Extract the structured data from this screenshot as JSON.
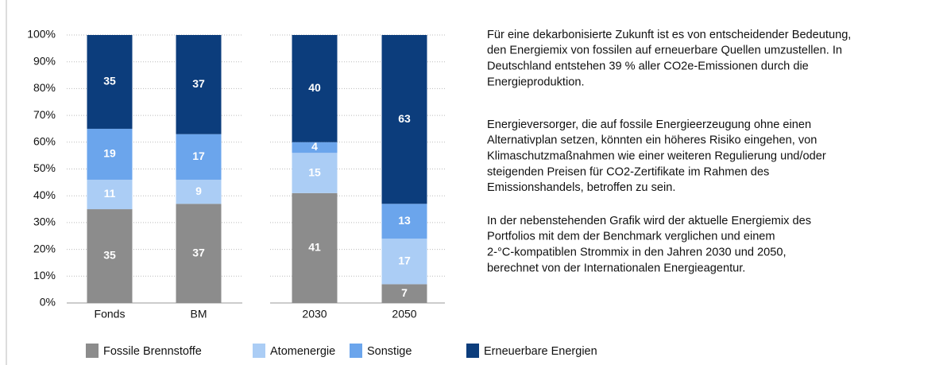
{
  "chart_data": {
    "type": "bar",
    "stacked": true,
    "categories": [
      "Fonds",
      "BM",
      "2030",
      "2050"
    ],
    "series": [
      {
        "name": "Fossile Brennstoffe",
        "color": "#8c8c8c",
        "values": [
          35,
          37,
          41,
          7
        ]
      },
      {
        "name": "Atomenergie",
        "color": "#abcdf5",
        "values": [
          11,
          9,
          15,
          17
        ]
      },
      {
        "name": "Sonstige",
        "color": "#6ba5ec",
        "values": [
          19,
          17,
          4,
          13
        ]
      },
      {
        "name": "Erneuerbare Energien",
        "color": "#0c3d7c",
        "values": [
          35,
          37,
          40,
          63
        ]
      }
    ],
    "ylim": [
      0,
      100
    ],
    "yticks": [
      {
        "value": 0,
        "label": "0%"
      },
      {
        "value": 10,
        "label": "10%"
      },
      {
        "value": 20,
        "label": "20%"
      },
      {
        "value": 30,
        "label": "30%"
      },
      {
        "value": 40,
        "label": "40%"
      },
      {
        "value": 50,
        "label": "50%"
      },
      {
        "value": 60,
        "label": "60%"
      },
      {
        "value": 70,
        "label": "70%"
      },
      {
        "value": 80,
        "label": "80%"
      },
      {
        "value": 90,
        "label": "90%"
      },
      {
        "value": 100,
        "label": "100%"
      }
    ],
    "grid": true
  },
  "text": {
    "paragraphs": [
      [
        "Für eine dekarbonisierte Zukunft ist es von entscheidender Bedeutung,",
        "den Energiemix von fossilen auf erneuerbare Quellen umzustellen. In",
        "Deutschland entstehen 39 % aller CO2e-Emissionen durch die",
        "Energieproduktion."
      ],
      [
        "Energieversorger, die auf fossile Energieerzeugung ohne einen",
        "Alternativplan setzen, könnten ein höheres Risiko eingehen, von",
        "Klimaschutzmaßnahmen wie einer weiteren Regulierung und/oder",
        "steigenden Preisen für CO2-Zertifikate im Rahmen des",
        "Emissionshandels, betroffen zu sein."
      ],
      [
        "In der nebenstehenden Grafik wird der aktuelle Energiemix des",
        "Portfolios mit dem der Benchmark verglichen und einem",
        "2-°C-kompatiblen Strommix in den Jahren 2030 und 2050,",
        "berechnet von der Internationalen Energieagentur."
      ]
    ]
  }
}
